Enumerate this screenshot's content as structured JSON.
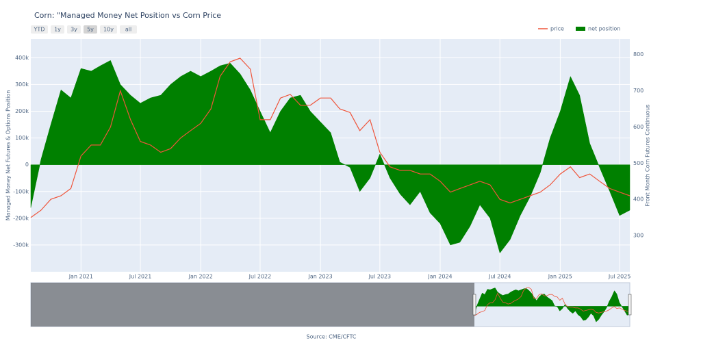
{
  "chart_data": {
    "type": "area-line",
    "title": "Corn: \"Managed Money Net Position vs Corn Price",
    "buttons": [
      "YTD",
      "1y",
      "3y",
      "5y",
      "10y",
      "all"
    ],
    "selected_button": "5y",
    "ylabel": "Managed Money Net Futures & Options Position",
    "y2label": "Front Month Corn Futures Continuous",
    "source": "Source: CME/CFTC",
    "legend": "top-right",
    "grid": true,
    "x": [
      "2020-08",
      "2020-09",
      "2020-10",
      "2020-11",
      "2020-12",
      "2021-01",
      "2021-02",
      "2021-03",
      "2021-04",
      "2021-05",
      "2021-06",
      "2021-07",
      "2021-08",
      "2021-09",
      "2021-10",
      "2021-11",
      "2021-12",
      "2022-01",
      "2022-02",
      "2022-03",
      "2022-04",
      "2022-05",
      "2022-06",
      "2022-07",
      "2022-08",
      "2022-09",
      "2022-10",
      "2022-11",
      "2022-12",
      "2023-01",
      "2023-02",
      "2023-03",
      "2023-04",
      "2023-05",
      "2023-06",
      "2023-07",
      "2023-08",
      "2023-09",
      "2023-10",
      "2023-11",
      "2023-12",
      "2024-01",
      "2024-02",
      "2024-03",
      "2024-04",
      "2024-05",
      "2024-06",
      "2024-07",
      "2024-08",
      "2024-09",
      "2024-10",
      "2024-11",
      "2024-12",
      "2025-01",
      "2025-02",
      "2025-03",
      "2025-04",
      "2025-05",
      "2025-06",
      "2025-07",
      "2025-08"
    ],
    "series": [
      {
        "name": "net position",
        "kind": "area",
        "color": "#008000",
        "axis": "y",
        "values": [
          -160000,
          20000,
          150000,
          280000,
          250000,
          360000,
          350000,
          370000,
          390000,
          300000,
          260000,
          230000,
          250000,
          260000,
          300000,
          330000,
          350000,
          330000,
          350000,
          370000,
          380000,
          340000,
          280000,
          200000,
          120000,
          200000,
          250000,
          260000,
          200000,
          160000,
          120000,
          10000,
          -10000,
          -100000,
          -50000,
          40000,
          -50000,
          -110000,
          -150000,
          -100000,
          -180000,
          -220000,
          -300000,
          -290000,
          -230000,
          -150000,
          -200000,
          -330000,
          -280000,
          -190000,
          -120000,
          -30000,
          100000,
          200000,
          330000,
          260000,
          80000,
          -10000,
          -100000,
          -190000,
          -170000
        ]
      },
      {
        "name": "price",
        "kind": "line",
        "color": "#ef553b",
        "axis": "y2",
        "values": [
          350,
          370,
          400,
          410,
          430,
          520,
          550,
          550,
          600,
          700,
          620,
          560,
          550,
          530,
          540,
          570,
          590,
          610,
          650,
          740,
          780,
          790,
          760,
          620,
          620,
          680,
          690,
          660,
          660,
          680,
          680,
          650,
          640,
          590,
          620,
          530,
          490,
          480,
          480,
          470,
          470,
          450,
          420,
          430,
          440,
          450,
          440,
          400,
          390,
          400,
          410,
          420,
          440,
          470,
          490,
          460,
          470,
          450,
          430,
          420,
          410
        ]
      }
    ],
    "xlim": [
      "2020-08",
      "2025-08"
    ],
    "xticks": [
      {
        "value": "2021-01",
        "label": "Jan 2021"
      },
      {
        "value": "2021-07",
        "label": "Jul 2021"
      },
      {
        "value": "2022-01",
        "label": "Jan 2022"
      },
      {
        "value": "2022-07",
        "label": "Jul 2022"
      },
      {
        "value": "2023-01",
        "label": "Jan 2023"
      },
      {
        "value": "2023-07",
        "label": "Jul 2023"
      },
      {
        "value": "2024-01",
        "label": "Jan 2024"
      },
      {
        "value": "2024-07",
        "label": "Jul 2024"
      },
      {
        "value": "2025-01",
        "label": "Jan 2025"
      },
      {
        "value": "2025-07",
        "label": "Jul 2025"
      }
    ],
    "ylim": [
      -400000,
      470000
    ],
    "yticks": [
      {
        "value": -300000,
        "label": "-300k"
      },
      {
        "value": -200000,
        "label": "-200k"
      },
      {
        "value": -100000,
        "label": "-100k"
      },
      0,
      {
        "value": 100000,
        "label": "100k"
      },
      {
        "value": 200000,
        "label": "200k"
      },
      {
        "value": 300000,
        "label": "300k"
      },
      {
        "value": 400000,
        "label": "400k"
      }
    ],
    "y2lim": [
      200,
      843
    ],
    "y2ticks": [
      300,
      400,
      500,
      600,
      700,
      800
    ]
  }
}
